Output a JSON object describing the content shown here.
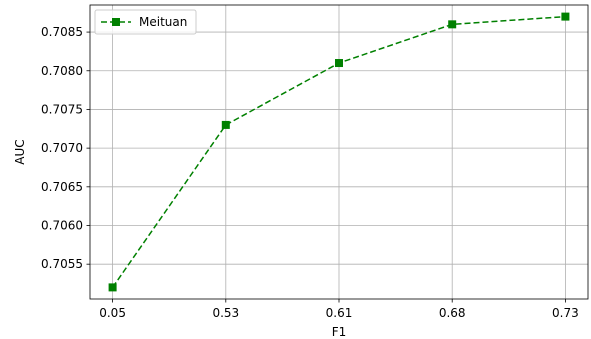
{
  "chart_data": {
    "type": "line",
    "title": "",
    "xlabel": "F1",
    "ylabel": "AUC",
    "categories": [
      "0.05",
      "0.53",
      "0.61",
      "0.68",
      "0.73"
    ],
    "series": [
      {
        "name": "Meituan",
        "values": [
          0.7052,
          0.7073,
          0.7081,
          0.7086,
          0.7087
        ],
        "color": "#008000",
        "line_style": "dashed",
        "marker": "square"
      }
    ],
    "ylim": [
      0.70505,
      0.70885
    ],
    "yticks": [
      "0.7055",
      "0.7060",
      "0.7065",
      "0.7070",
      "0.7075",
      "0.7080",
      "0.7085"
    ],
    "grid": true,
    "legend_position": "top-left"
  }
}
